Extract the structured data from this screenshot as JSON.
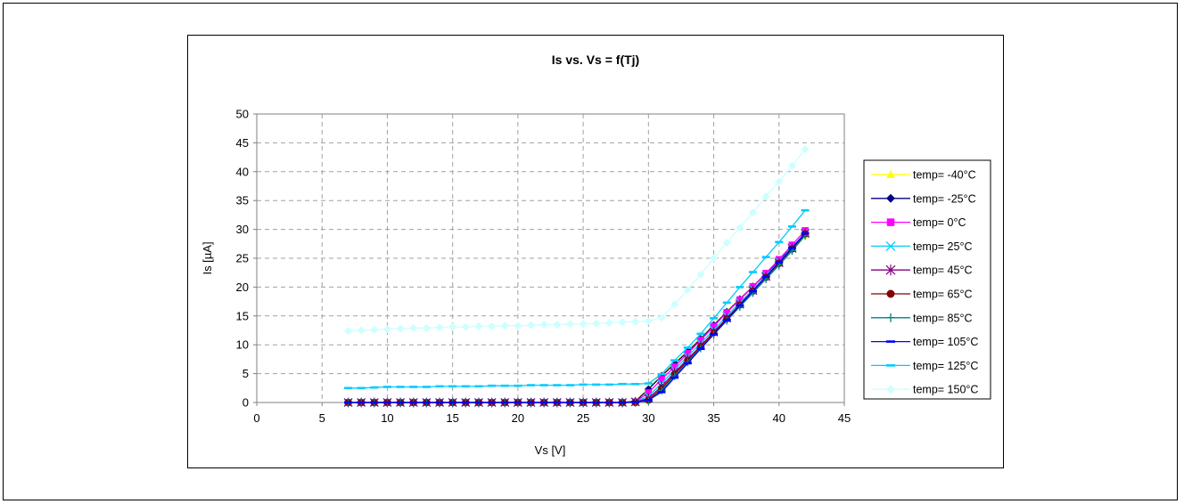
{
  "chart_data": {
    "type": "line",
    "title": "Is vs. Vs = f(Tj)",
    "xlabel": "Vs [V]",
    "ylabel": "Is [µA]",
    "xlim": [
      0,
      45
    ],
    "ylim": [
      0,
      50
    ],
    "xticks": [
      0,
      5,
      10,
      15,
      20,
      25,
      30,
      35,
      40,
      45
    ],
    "yticks": [
      0,
      5,
      10,
      15,
      20,
      25,
      30,
      35,
      40,
      45,
      50
    ],
    "grid": true,
    "legend_position": "right",
    "x": [
      7,
      8,
      9,
      10,
      11,
      12,
      13,
      14,
      15,
      16,
      17,
      18,
      19,
      20,
      21,
      22,
      23,
      24,
      25,
      26,
      27,
      28,
      29,
      30,
      31,
      32,
      33,
      34,
      35,
      36,
      37,
      38,
      39,
      40,
      41,
      42
    ],
    "series": [
      {
        "name": "temp= -40°C",
        "color": "#FFFF00",
        "marker": "triangle",
        "values": [
          0,
          0,
          0,
          0,
          0,
          0,
          0,
          0,
          0,
          0,
          0,
          0,
          0,
          0,
          0,
          0,
          0,
          0,
          0,
          0,
          0,
          0,
          0.3,
          2.5,
          4.8,
          6.9,
          8.9,
          11.2,
          13.5,
          15.8,
          18.0,
          20.2,
          22.4,
          24.6,
          26.8,
          29.0
        ]
      },
      {
        "name": "temp= -25°C",
        "color": "#000080",
        "marker": "diamond",
        "values": [
          0,
          0,
          0,
          0,
          0,
          0,
          0,
          0,
          0,
          0,
          0,
          0,
          0,
          0,
          0,
          0,
          0,
          0,
          0,
          0,
          0,
          0,
          0.2,
          2.3,
          4.6,
          6.7,
          8.8,
          11.0,
          13.4,
          15.7,
          17.9,
          20.1,
          22.3,
          24.6,
          26.9,
          29.3
        ]
      },
      {
        "name": "temp= 0°C",
        "color": "#FF00FF",
        "marker": "square",
        "values": [
          0,
          0,
          0,
          0,
          0,
          0,
          0,
          0,
          0,
          0,
          0,
          0,
          0,
          0,
          0,
          0,
          0,
          0,
          0,
          0,
          0,
          0,
          0.1,
          1.7,
          4.0,
          6.2,
          8.5,
          10.8,
          13.2,
          15.6,
          17.8,
          20.1,
          22.4,
          24.8,
          27.3,
          29.8
        ]
      },
      {
        "name": "temp= 25°C",
        "color": "#00CCFF",
        "marker": "x",
        "values": [
          0,
          0,
          0,
          0,
          0,
          0,
          0,
          0,
          0,
          0,
          0,
          0,
          0,
          0,
          0,
          0,
          0,
          0,
          0,
          0,
          0,
          0,
          0.1,
          1.1,
          3.3,
          5.7,
          8.0,
          10.3,
          12.6,
          15.0,
          17.3,
          19.6,
          22.0,
          24.4,
          26.9,
          29.4
        ]
      },
      {
        "name": "temp= 45°C",
        "color": "#800080",
        "marker": "star",
        "values": [
          0,
          0,
          0,
          0,
          0,
          0,
          0,
          0,
          0,
          0,
          0,
          0,
          0,
          0,
          0,
          0,
          0,
          0,
          0,
          0,
          0,
          0,
          0.1,
          0.7,
          2.8,
          5.2,
          7.5,
          9.8,
          12.2,
          14.6,
          17.0,
          19.4,
          21.8,
          24.2,
          26.7,
          29.3
        ]
      },
      {
        "name": "temp= 65°C",
        "color": "#800000",
        "marker": "circle",
        "values": [
          0,
          0,
          0,
          0,
          0,
          0,
          0,
          0,
          0,
          0,
          0,
          0,
          0,
          0,
          0,
          0,
          0,
          0,
          0,
          0,
          0,
          0,
          0,
          0.4,
          2.4,
          4.9,
          7.3,
          9.7,
          12.1,
          14.5,
          16.9,
          19.3,
          21.7,
          24.1,
          26.6,
          29.2
        ]
      },
      {
        "name": "temp= 85°C",
        "color": "#008080",
        "marker": "plus",
        "values": [
          0,
          0,
          0,
          0,
          0,
          0,
          0,
          0,
          0,
          0,
          0,
          0,
          0,
          0,
          0,
          0,
          0,
          0,
          0,
          0,
          0,
          0,
          0,
          0.3,
          2.1,
          4.6,
          7.0,
          9.4,
          11.8,
          14.2,
          16.6,
          19.0,
          21.4,
          23.8,
          26.3,
          28.9
        ]
      },
      {
        "name": "temp= 105°C",
        "color": "#0000FF",
        "marker": "dash",
        "values": [
          0,
          0,
          0,
          0,
          0,
          0,
          0,
          0,
          0,
          0,
          0,
          0,
          0,
          0,
          0,
          0,
          0,
          0,
          0,
          0,
          0,
          0,
          0.1,
          0.4,
          1.8,
          4.3,
          6.8,
          9.3,
          11.8,
          14.3,
          16.8,
          19.3,
          21.8,
          24.3,
          26.8,
          29.3
        ]
      },
      {
        "name": "temp= 125°C",
        "color": "#00CCFF",
        "marker": "dash",
        "values": [
          2.5,
          2.5,
          2.6,
          2.7,
          2.7,
          2.7,
          2.7,
          2.8,
          2.8,
          2.8,
          2.8,
          2.9,
          2.9,
          2.9,
          3.0,
          3.0,
          3.0,
          3.0,
          3.1,
          3.1,
          3.1,
          3.2,
          3.2,
          3.3,
          4.9,
          7.3,
          9.5,
          11.9,
          14.6,
          17.3,
          20.0,
          22.6,
          25.2,
          27.8,
          30.5,
          33.3
        ]
      },
      {
        "name": "temp= 150°C",
        "color": "#CCFFFF",
        "marker": "diamond",
        "values": [
          12.4,
          12.5,
          12.6,
          12.7,
          12.8,
          12.9,
          12.9,
          13.0,
          13.1,
          13.1,
          13.2,
          13.2,
          13.3,
          13.3,
          13.4,
          13.5,
          13.5,
          13.6,
          13.6,
          13.7,
          13.8,
          13.9,
          14.0,
          14.1,
          14.7,
          17.0,
          19.5,
          22.2,
          25.0,
          27.7,
          30.3,
          32.9,
          35.7,
          38.3,
          41.0,
          43.9
        ]
      }
    ]
  }
}
